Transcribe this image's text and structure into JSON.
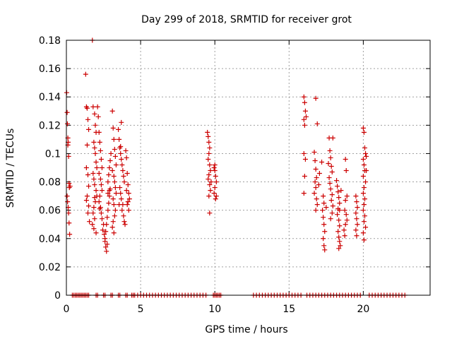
{
  "chart_data": {
    "type": "scatter",
    "title": "Day 299 of 2018, SRMTID for receiver grot",
    "xlabel": "GPS time / hours",
    "ylabel": "SRMTID / TECUs",
    "xlim": [
      0,
      24.5
    ],
    "ylim": [
      0,
      0.18
    ],
    "x_ticks": [
      0,
      5,
      10,
      15,
      20
    ],
    "y_ticks": [
      0,
      0.02,
      0.04,
      0.06,
      0.08,
      0.1,
      0.12,
      0.14,
      0.16,
      0.18
    ],
    "x_tick_labels": [
      "0",
      "5",
      "10",
      "15",
      "20"
    ],
    "y_tick_labels": [
      "0",
      "0.02",
      "0.04",
      "0.06",
      "0.08",
      "0.1",
      "0.12",
      "0.14",
      "0.16",
      "0.18"
    ],
    "grid": true,
    "marker": "+",
    "marker_color": "#cc0000",
    "series": [
      {
        "name": "SRMTID",
        "points": [
          [
            0.02,
            0.143
          ],
          [
            0.05,
            0.129
          ],
          [
            0.07,
            0.121
          ],
          [
            0.1,
            0.111
          ],
          [
            0.12,
            0.108
          ],
          [
            0.15,
            0.098
          ],
          [
            0.18,
            0.079
          ],
          [
            0.2,
            0.076
          ],
          [
            0.05,
            0.07
          ],
          [
            0.08,
            0.066
          ],
          [
            0.12,
            0.062
          ],
          [
            0.15,
            0.058
          ],
          [
            0.18,
            0.051
          ],
          [
            0.22,
            0.043
          ],
          [
            0.25,
            0.077
          ],
          [
            0.1,
            0.106
          ],
          [
            1.3,
            0.156
          ],
          [
            1.35,
            0.133
          ],
          [
            1.4,
            0.132
          ],
          [
            1.45,
            0.124
          ],
          [
            1.5,
            0.117
          ],
          [
            1.4,
            0.106
          ],
          [
            1.35,
            0.09
          ],
          [
            1.45,
            0.085
          ],
          [
            1.5,
            0.077
          ],
          [
            1.4,
            0.07
          ],
          [
            1.35,
            0.067
          ],
          [
            1.5,
            0.063
          ],
          [
            1.45,
            0.058
          ],
          [
            1.55,
            0.052
          ],
          [
            1.75,
            0.18
          ],
          [
            1.8,
            0.133
          ],
          [
            1.9,
            0.128
          ],
          [
            1.95,
            0.12
          ],
          [
            2.0,
            0.115
          ],
          [
            1.85,
            0.108
          ],
          [
            1.9,
            0.104
          ],
          [
            1.95,
            0.1
          ],
          [
            2.0,
            0.094
          ],
          [
            2.05,
            0.09
          ],
          [
            1.8,
            0.086
          ],
          [
            1.85,
            0.082
          ],
          [
            1.9,
            0.078
          ],
          [
            2.0,
            0.074
          ],
          [
            2.05,
            0.07
          ],
          [
            1.95,
            0.066
          ],
          [
            1.85,
            0.062
          ],
          [
            1.8,
            0.058
          ],
          [
            1.9,
            0.054
          ],
          [
            1.75,
            0.05
          ],
          [
            1.85,
            0.047
          ],
          [
            2.0,
            0.044
          ],
          [
            1.9,
            0.069
          ],
          [
            2.1,
            0.133
          ],
          [
            2.15,
            0.126
          ],
          [
            2.2,
            0.115
          ],
          [
            2.25,
            0.108
          ],
          [
            2.3,
            0.102
          ],
          [
            2.35,
            0.096
          ],
          [
            2.4,
            0.09
          ],
          [
            2.2,
            0.086
          ],
          [
            2.3,
            0.082
          ],
          [
            2.35,
            0.078
          ],
          [
            2.4,
            0.074
          ],
          [
            2.25,
            0.07
          ],
          [
            2.2,
            0.066
          ],
          [
            2.3,
            0.062
          ],
          [
            2.35,
            0.058
          ],
          [
            2.4,
            0.054
          ],
          [
            2.5,
            0.05
          ],
          [
            2.45,
            0.046
          ],
          [
            2.55,
            0.043
          ],
          [
            2.6,
            0.04
          ],
          [
            2.25,
            0.061
          ],
          [
            2.6,
            0.038
          ],
          [
            2.65,
            0.034
          ],
          [
            2.7,
            0.031
          ],
          [
            2.75,
            0.036
          ],
          [
            2.65,
            0.045
          ],
          [
            2.7,
            0.05
          ],
          [
            2.75,
            0.055
          ],
          [
            2.8,
            0.06
          ],
          [
            2.85,
            0.065
          ],
          [
            2.9,
            0.07
          ],
          [
            2.95,
            0.075
          ],
          [
            2.8,
            0.08
          ],
          [
            2.85,
            0.085
          ],
          [
            2.9,
            0.09
          ],
          [
            2.95,
            0.095
          ],
          [
            3.0,
            0.1
          ],
          [
            2.9,
            0.074
          ],
          [
            2.8,
            0.072
          ],
          [
            3.1,
            0.13
          ],
          [
            3.15,
            0.118
          ],
          [
            3.2,
            0.11
          ],
          [
            3.25,
            0.103
          ],
          [
            3.3,
            0.098
          ],
          [
            3.35,
            0.092
          ],
          [
            3.1,
            0.088
          ],
          [
            3.2,
            0.084
          ],
          [
            3.25,
            0.08
          ],
          [
            3.3,
            0.076
          ],
          [
            3.35,
            0.072
          ],
          [
            3.15,
            0.068
          ],
          [
            3.2,
            0.064
          ],
          [
            3.3,
            0.06
          ],
          [
            3.25,
            0.056
          ],
          [
            3.15,
            0.052
          ],
          [
            3.1,
            0.048
          ],
          [
            3.2,
            0.044
          ],
          [
            3.5,
            0.117
          ],
          [
            3.55,
            0.11
          ],
          [
            3.6,
            0.104
          ],
          [
            3.65,
            0.1
          ],
          [
            3.7,
            0.096
          ],
          [
            3.75,
            0.092
          ],
          [
            3.8,
            0.088
          ],
          [
            3.85,
            0.084
          ],
          [
            3.9,
            0.08
          ],
          [
            3.6,
            0.076
          ],
          [
            3.65,
            0.072
          ],
          [
            3.7,
            0.068
          ],
          [
            3.8,
            0.064
          ],
          [
            3.75,
            0.06
          ],
          [
            3.85,
            0.056
          ],
          [
            3.9,
            0.052
          ],
          [
            3.95,
            0.05
          ],
          [
            3.55,
            0.064
          ],
          [
            4.0,
            0.102
          ],
          [
            4.05,
            0.097
          ],
          [
            4.1,
            0.086
          ],
          [
            4.15,
            0.078
          ],
          [
            4.2,
            0.072
          ],
          [
            4.25,
            0.068
          ],
          [
            4.1,
            0.064
          ],
          [
            4.2,
            0.06
          ],
          [
            4.15,
            0.066
          ],
          [
            4.05,
            0.074
          ],
          [
            3.7,
            0.122
          ],
          [
            3.65,
            0.105
          ],
          [
            9.5,
            0.115
          ],
          [
            9.55,
            0.112
          ],
          [
            9.6,
            0.108
          ],
          [
            9.65,
            0.104
          ],
          [
            9.6,
            0.1
          ],
          [
            9.55,
            0.096
          ],
          [
            9.65,
            0.092
          ],
          [
            9.7,
            0.088
          ],
          [
            9.6,
            0.085
          ],
          [
            9.55,
            0.082
          ],
          [
            9.65,
            0.078
          ],
          [
            9.7,
            0.074
          ],
          [
            9.6,
            0.07
          ],
          [
            9.65,
            0.058
          ],
          [
            9.75,
            0.08
          ],
          [
            9.95,
            0.09
          ],
          [
            10.0,
            0.088
          ],
          [
            10.05,
            0.084
          ],
          [
            10.1,
            0.08
          ],
          [
            10.0,
            0.076
          ],
          [
            9.95,
            0.072
          ],
          [
            10.05,
            0.068
          ],
          [
            10.1,
            0.07
          ],
          [
            10.0,
            0.092
          ],
          [
            16.0,
            0.14
          ],
          [
            16.05,
            0.136
          ],
          [
            16.1,
            0.13
          ],
          [
            16.0,
            0.124
          ],
          [
            16.15,
            0.126
          ],
          [
            16.05,
            0.12
          ],
          [
            16.0,
            0.1
          ],
          [
            16.1,
            0.096
          ],
          [
            16.05,
            0.084
          ],
          [
            16.0,
            0.072
          ],
          [
            16.8,
            0.139
          ],
          [
            16.9,
            0.121
          ],
          [
            16.7,
            0.101
          ],
          [
            16.75,
            0.095
          ],
          [
            16.8,
            0.089
          ],
          [
            16.85,
            0.083
          ],
          [
            16.75,
            0.08
          ],
          [
            16.8,
            0.076
          ],
          [
            16.7,
            0.072
          ],
          [
            16.85,
            0.068
          ],
          [
            16.9,
            0.064
          ],
          [
            16.8,
            0.06
          ],
          [
            17.0,
            0.078
          ],
          [
            17.05,
            0.086
          ],
          [
            17.2,
            0.094
          ],
          [
            17.3,
            0.07
          ],
          [
            17.35,
            0.065
          ],
          [
            17.25,
            0.06
          ],
          [
            17.3,
            0.055
          ],
          [
            17.35,
            0.05
          ],
          [
            17.4,
            0.045
          ],
          [
            17.3,
            0.04
          ],
          [
            17.35,
            0.035
          ],
          [
            17.4,
            0.032
          ],
          [
            17.5,
            0.062
          ],
          [
            17.7,
            0.111
          ],
          [
            17.75,
            0.102
          ],
          [
            17.8,
            0.097
          ],
          [
            17.85,
            0.091
          ],
          [
            17.9,
            0.087
          ],
          [
            17.7,
            0.083
          ],
          [
            17.75,
            0.079
          ],
          [
            17.8,
            0.075
          ],
          [
            17.9,
            0.071
          ],
          [
            17.85,
            0.067
          ],
          [
            17.95,
            0.063
          ],
          [
            17.9,
            0.058
          ],
          [
            17.8,
            0.054
          ],
          [
            17.95,
            0.111
          ],
          [
            17.65,
            0.093
          ],
          [
            18.2,
            0.081
          ],
          [
            18.25,
            0.077
          ],
          [
            18.3,
            0.073
          ],
          [
            18.35,
            0.069
          ],
          [
            18.4,
            0.065
          ],
          [
            18.3,
            0.061
          ],
          [
            18.25,
            0.057
          ],
          [
            18.35,
            0.053
          ],
          [
            18.4,
            0.049
          ],
          [
            18.3,
            0.045
          ],
          [
            18.35,
            0.041
          ],
          [
            18.4,
            0.038
          ],
          [
            18.45,
            0.035
          ],
          [
            18.35,
            0.033
          ],
          [
            18.4,
            0.06
          ],
          [
            18.5,
            0.074
          ],
          [
            18.8,
            0.096
          ],
          [
            18.85,
            0.088
          ],
          [
            18.9,
            0.07
          ],
          [
            18.8,
            0.067
          ],
          [
            18.75,
            0.06
          ],
          [
            18.85,
            0.057
          ],
          [
            18.9,
            0.053
          ],
          [
            18.8,
            0.05
          ],
          [
            18.7,
            0.046
          ],
          [
            18.75,
            0.042
          ],
          [
            19.5,
            0.07
          ],
          [
            19.55,
            0.066
          ],
          [
            19.6,
            0.062
          ],
          [
            19.5,
            0.058
          ],
          [
            19.55,
            0.054
          ],
          [
            19.6,
            0.05
          ],
          [
            19.5,
            0.046
          ],
          [
            19.55,
            0.042
          ],
          [
            20.0,
            0.118
          ],
          [
            20.05,
            0.115
          ],
          [
            20.1,
            0.104
          ],
          [
            20.15,
            0.1
          ],
          [
            20.0,
            0.096
          ],
          [
            20.05,
            0.092
          ],
          [
            20.1,
            0.088
          ],
          [
            20.0,
            0.084
          ],
          [
            20.15,
            0.08
          ],
          [
            20.05,
            0.076
          ],
          [
            20.0,
            0.072
          ],
          [
            20.1,
            0.068
          ],
          [
            20.05,
            0.064
          ],
          [
            20.0,
            0.06
          ],
          [
            20.1,
            0.056
          ],
          [
            20.05,
            0.052
          ],
          [
            20.15,
            0.048
          ],
          [
            20.0,
            0.044
          ],
          [
            20.05,
            0.039
          ],
          [
            20.2,
            0.098
          ],
          [
            20.2,
            0.088
          ]
        ],
        "zero_points_x": [
          0.4,
          0.5,
          0.6,
          0.7,
          0.8,
          0.9,
          1.0,
          1.1,
          1.2,
          1.3,
          1.4,
          1.5,
          2.0,
          2.1,
          2.5,
          2.6,
          3.0,
          3.1,
          3.5,
          3.6,
          4.0,
          4.1,
          4.4,
          4.5,
          4.6,
          4.8,
          5.0,
          5.2,
          5.4,
          5.6,
          5.8,
          6.0,
          6.2,
          6.4,
          6.6,
          6.8,
          7.0,
          7.2,
          7.4,
          7.6,
          7.8,
          8.0,
          8.2,
          8.4,
          8.6,
          8.8,
          9.0,
          9.2,
          9.4,
          9.9,
          10.0,
          10.1,
          10.2,
          10.3,
          10.4,
          12.6,
          12.8,
          13.0,
          13.2,
          13.4,
          13.6,
          13.8,
          14.0,
          14.2,
          14.4,
          14.6,
          14.8,
          15.0,
          15.2,
          15.4,
          15.6,
          15.8,
          16.2,
          16.4,
          16.6,
          16.8,
          17.0,
          17.2,
          17.4,
          17.6,
          17.8,
          18.0,
          18.2,
          18.4,
          18.6,
          18.8,
          19.0,
          19.2,
          19.4,
          19.6,
          19.8,
          20.4,
          20.6,
          20.8,
          21.0,
          21.2,
          21.4,
          21.6,
          21.8,
          22.0,
          22.2,
          22.4,
          22.6,
          22.8
        ]
      }
    ]
  }
}
